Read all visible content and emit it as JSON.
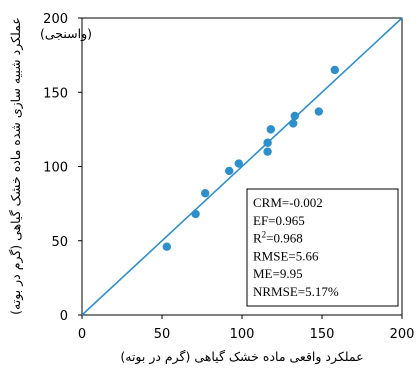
{
  "chart_data": {
    "type": "scatter",
    "title": "",
    "panel_label": "(واسنجی)",
    "xlabel": "عملکرد واقعی ماده خشک گیاهی (گرم در بوته)",
    "ylabel": "عملکرد شبیه سازی شده ماده خشک گیاهی (گرم در بوته)",
    "xlim": [
      0,
      200
    ],
    "ylim": [
      0,
      200
    ],
    "x_ticks": [
      "0",
      "50",
      "100",
      "150",
      "200"
    ],
    "y_ticks": [
      "0",
      "50",
      "100",
      "150",
      "200"
    ],
    "grid": false,
    "reference_line": "1:1",
    "marker_color": "#2e8fcd",
    "line_color": "#2e8fcd",
    "points": [
      {
        "x": 53,
        "y": 46
      },
      {
        "x": 71,
        "y": 68
      },
      {
        "x": 77,
        "y": 82
      },
      {
        "x": 92,
        "y": 97
      },
      {
        "x": 98,
        "y": 102
      },
      {
        "x": 116,
        "y": 110
      },
      {
        "x": 116,
        "y": 116
      },
      {
        "x": 118,
        "y": 125
      },
      {
        "x": 132,
        "y": 129
      },
      {
        "x": 133,
        "y": 134
      },
      {
        "x": 148,
        "y": 137
      },
      {
        "x": 158,
        "y": 165
      }
    ],
    "stats": [
      {
        "label": "CRM=-0.002"
      },
      {
        "label": "EF=0.965"
      },
      {
        "label": "R",
        "sup": "2",
        "rest": "=0.968"
      },
      {
        "label": "RMSE=5.66"
      },
      {
        "label": "ME=9.95"
      },
      {
        "label": "NRMSE=5.17%"
      }
    ]
  }
}
